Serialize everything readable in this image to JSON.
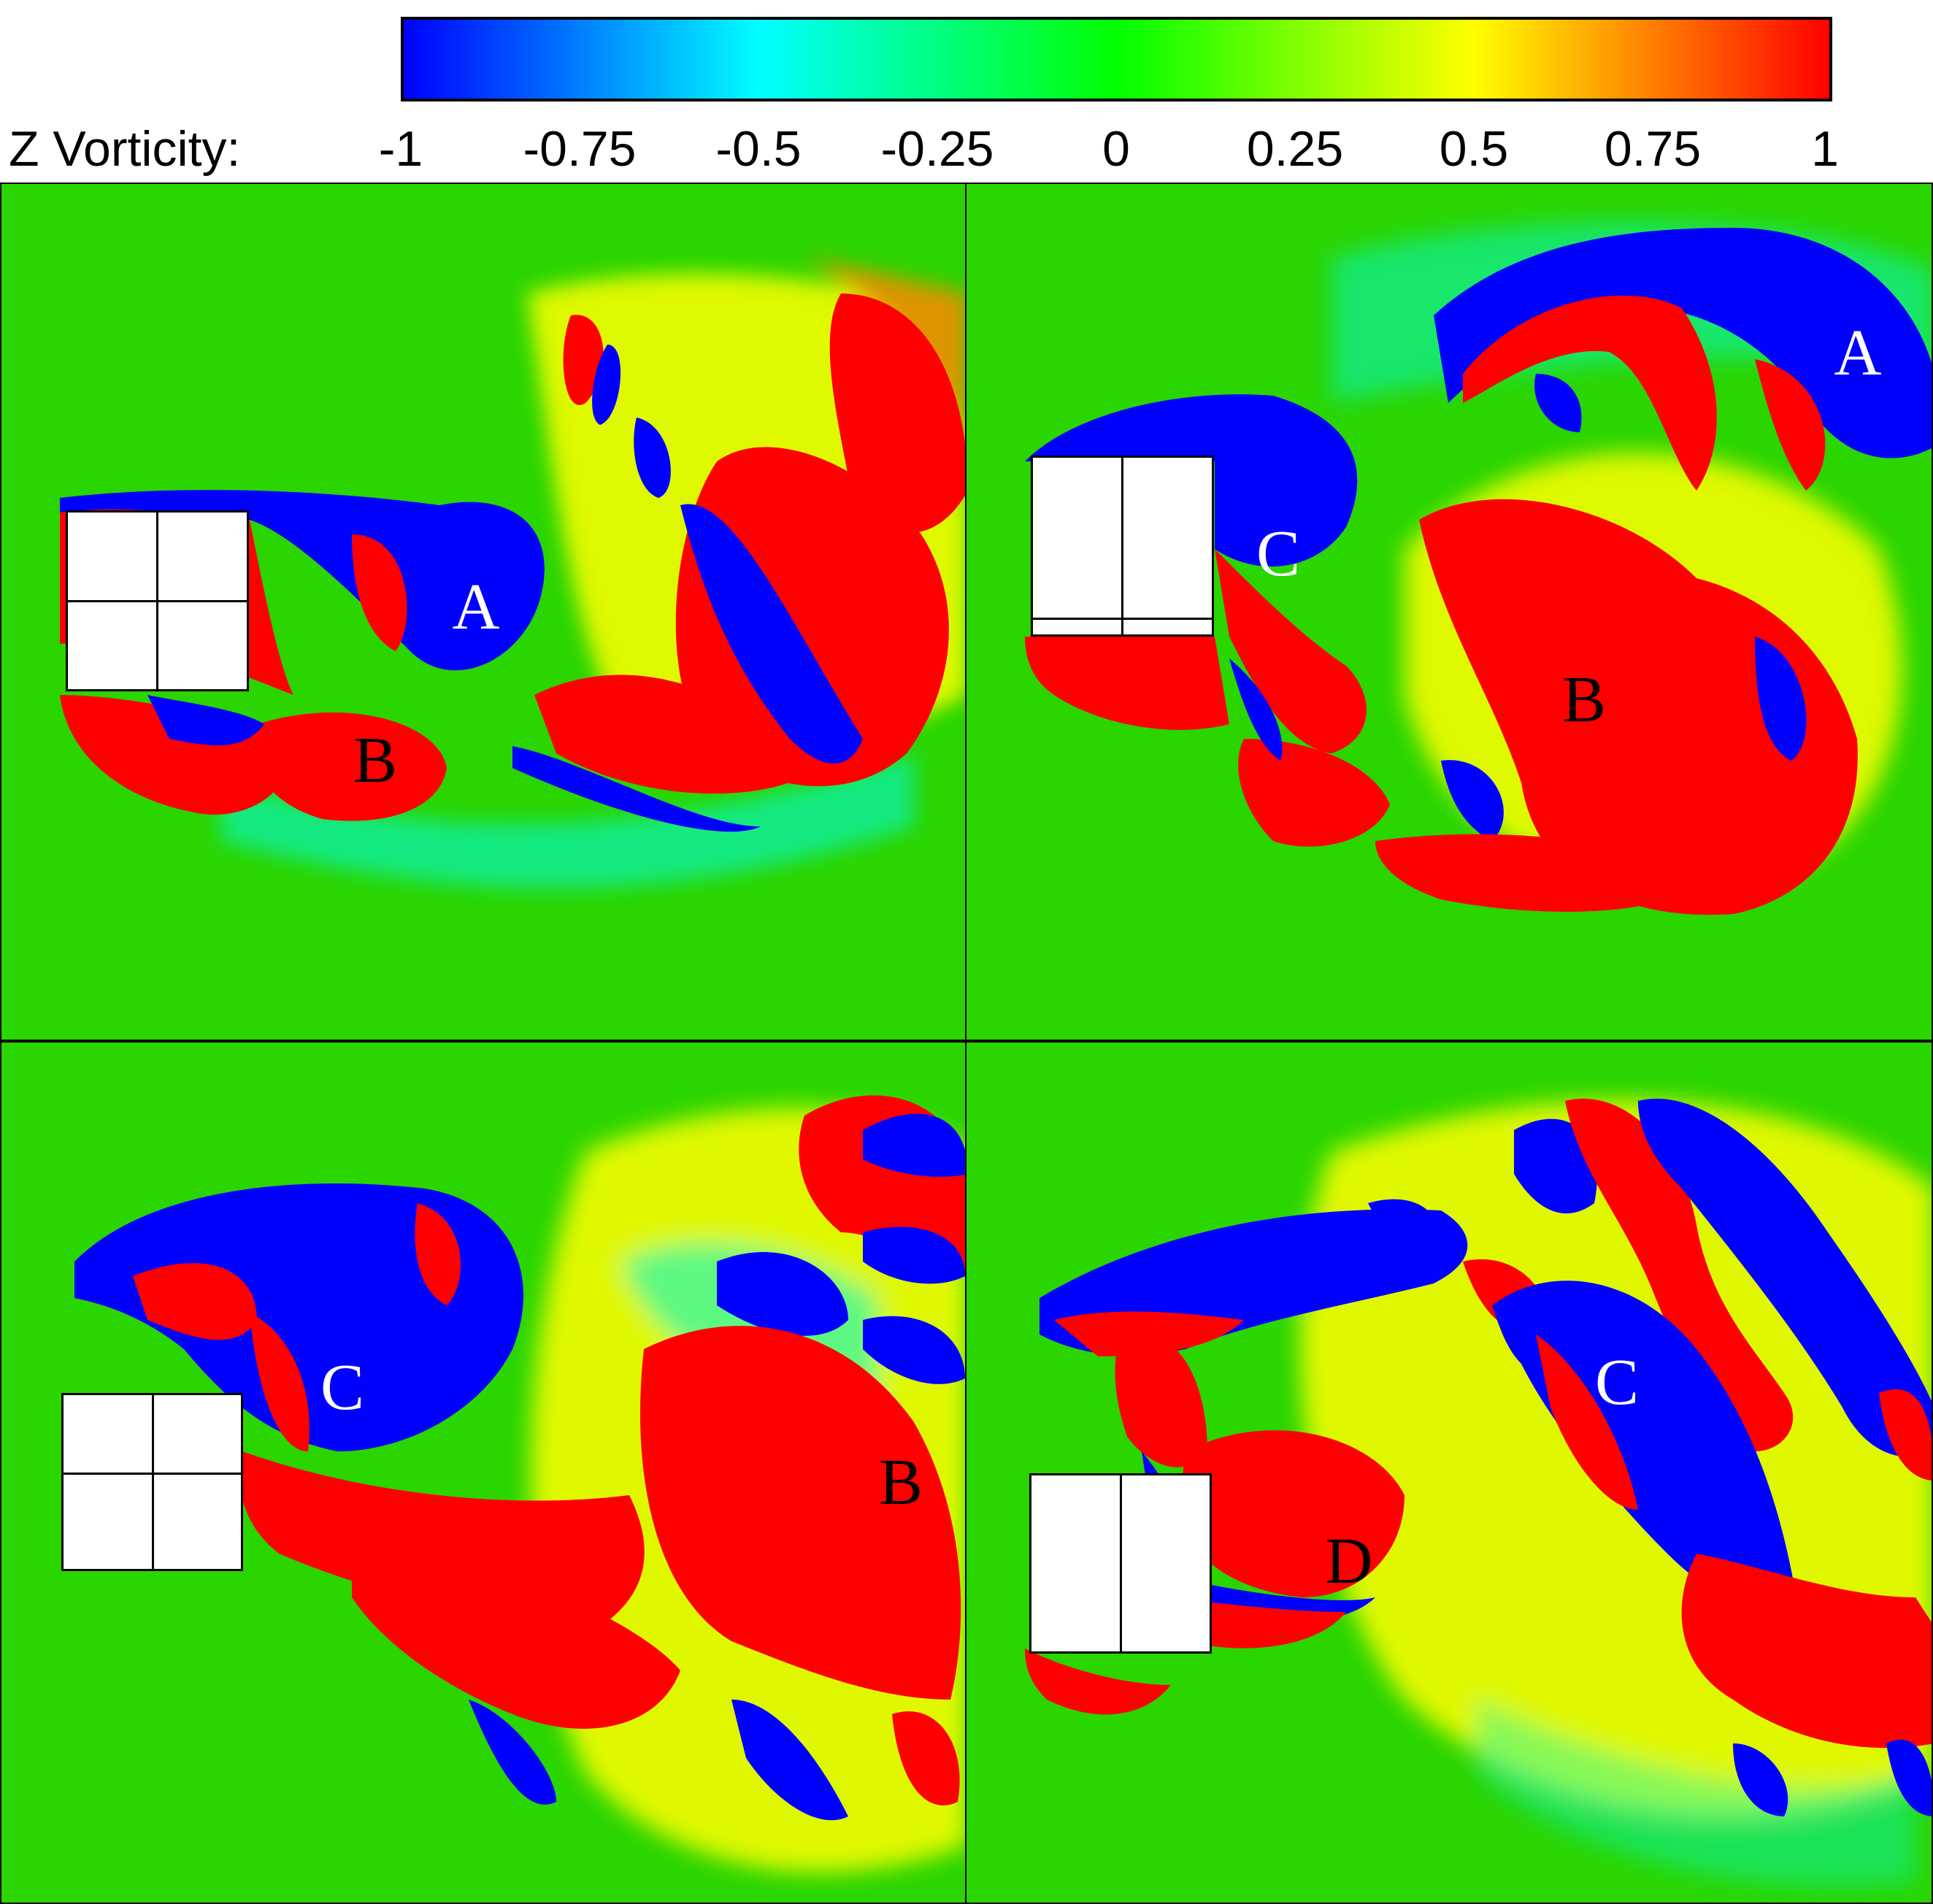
{
  "colorbar": {
    "label": "Z Vorticity:",
    "ticks": [
      "-1",
      "-0.75",
      "-0.5",
      "-0.25",
      "0",
      "0.25",
      "0.5",
      "0.75",
      "1"
    ],
    "colors": [
      "#0000ff",
      "#00ffff",
      "#00ff00",
      "#ffff00",
      "#ff0000"
    ]
  },
  "palette": {
    "background": "#2ad500",
    "positive": "#ff0000",
    "negative": "#0000ff"
  },
  "panels": [
    {
      "labels": [
        "A",
        "B"
      ],
      "label_colors": [
        "#ffffff",
        "#000000"
      ]
    },
    {
      "labels": [
        "A",
        "B",
        "C"
      ],
      "label_colors": [
        "#ffffff",
        "#000000",
        "#ffffff"
      ]
    },
    {
      "labels": [
        "B",
        "C"
      ],
      "label_colors": [
        "#000000",
        "#ffffff"
      ]
    },
    {
      "labels": [
        "C",
        "D"
      ],
      "label_colors": [
        "#ffffff",
        "#000000"
      ]
    }
  ]
}
